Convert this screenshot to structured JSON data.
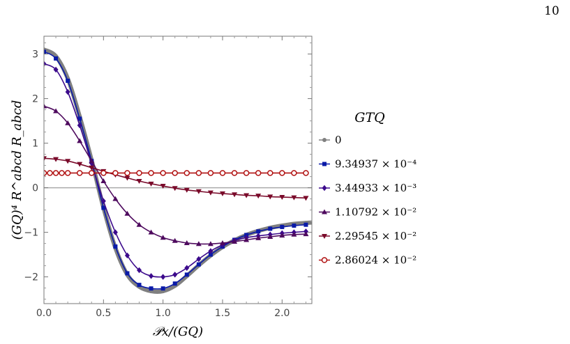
{
  "page_number": "10",
  "chart_data": {
    "type": "line",
    "title": "",
    "xlabel": "𝒫x/(GQ)",
    "ylabel": "(GQ)⁴ R^abcd R_abcd",
    "xlim": [
      0,
      2.25
    ],
    "ylim": [
      -2.6,
      3.4
    ],
    "x_ticks": [
      0.0,
      0.5,
      1.0,
      1.5,
      2.0
    ],
    "x_tick_labels": [
      "0.0",
      "0.5",
      "1.0",
      "1.5",
      "2.0"
    ],
    "y_ticks": [
      -2,
      -1,
      0,
      1,
      2,
      3
    ],
    "y_tick_labels": [
      "−2",
      "−1",
      "0",
      "1",
      "2",
      "3"
    ],
    "grid": false,
    "zero_line": true,
    "legend": {
      "title": "GTQ",
      "position": "right",
      "entries": [
        "0",
        "9.34937 × 10⁻⁴",
        "3.44933 × 10⁻³",
        "1.10792 × 10⁻²",
        "2.29545 × 10⁻²",
        "2.86024 × 10⁻²"
      ]
    },
    "series": [
      {
        "name": "0",
        "color": "#808080",
        "marker": "circle",
        "x": [
          0.0,
          0.1,
          0.2,
          0.3,
          0.4,
          0.5,
          0.6,
          0.7,
          0.8,
          0.9,
          1.0,
          1.1,
          1.2,
          1.3,
          1.4,
          1.5,
          1.6,
          1.7,
          1.8,
          1.9,
          2.0,
          2.1,
          2.2,
          2.25
        ],
        "y": [
          3.1,
          2.95,
          2.45,
          1.6,
          0.62,
          -0.45,
          -1.35,
          -1.95,
          -2.22,
          -2.32,
          -2.32,
          -2.2,
          -1.98,
          -1.74,
          -1.52,
          -1.33,
          -1.18,
          -1.06,
          -0.97,
          -0.9,
          -0.85,
          -0.81,
          -0.79,
          -0.78
        ]
      },
      {
        "name": "9.34937 × 10⁻⁴",
        "color": "#0a1aa8",
        "marker": "square",
        "x": [
          0.0,
          0.1,
          0.2,
          0.3,
          0.4,
          0.5,
          0.6,
          0.7,
          0.8,
          0.9,
          1.0,
          1.1,
          1.2,
          1.3,
          1.4,
          1.5,
          1.6,
          1.7,
          1.8,
          1.9,
          2.0,
          2.1,
          2.2
        ],
        "y": [
          3.05,
          2.9,
          2.4,
          1.55,
          0.6,
          -0.45,
          -1.32,
          -1.92,
          -2.18,
          -2.26,
          -2.26,
          -2.15,
          -1.95,
          -1.72,
          -1.5,
          -1.32,
          -1.17,
          -1.06,
          -0.98,
          -0.92,
          -0.88,
          -0.85,
          -0.83
        ]
      },
      {
        "name": "3.44933 × 10⁻³",
        "color": "#3c0a8c",
        "marker": "diamond",
        "x": [
          0.0,
          0.1,
          0.2,
          0.3,
          0.4,
          0.5,
          0.6,
          0.7,
          0.8,
          0.9,
          1.0,
          1.1,
          1.2,
          1.3,
          1.4,
          1.5,
          1.6,
          1.7,
          1.8,
          1.9,
          2.0,
          2.1,
          2.2
        ],
        "y": [
          2.78,
          2.65,
          2.15,
          1.4,
          0.55,
          -0.3,
          -1.0,
          -1.52,
          -1.85,
          -1.98,
          -2.0,
          -1.95,
          -1.8,
          -1.6,
          -1.42,
          -1.28,
          -1.18,
          -1.12,
          -1.08,
          -1.05,
          -1.02,
          -1.0,
          -0.98
        ]
      },
      {
        "name": "1.10792 × 10⁻²",
        "color": "#4e0a5e",
        "marker": "triangle-up",
        "x": [
          0.0,
          0.1,
          0.2,
          0.3,
          0.4,
          0.5,
          0.6,
          0.7,
          0.8,
          0.9,
          1.0,
          1.1,
          1.2,
          1.3,
          1.4,
          1.5,
          1.6,
          1.7,
          1.8,
          1.9,
          2.0,
          2.1,
          2.2
        ],
        "y": [
          1.83,
          1.72,
          1.45,
          1.05,
          0.6,
          0.15,
          -0.25,
          -0.58,
          -0.83,
          -1.0,
          -1.12,
          -1.19,
          -1.24,
          -1.26,
          -1.26,
          -1.24,
          -1.21,
          -1.17,
          -1.13,
          -1.1,
          -1.07,
          -1.05,
          -1.04
        ]
      },
      {
        "name": "2.29545 × 10⁻²",
        "color": "#7a0a2a",
        "marker": "triangle-down",
        "x": [
          0.0,
          0.1,
          0.2,
          0.3,
          0.4,
          0.5,
          0.6,
          0.7,
          0.8,
          0.9,
          1.0,
          1.1,
          1.2,
          1.3,
          1.4,
          1.5,
          1.6,
          1.7,
          1.8,
          1.9,
          2.0,
          2.1,
          2.2
        ],
        "y": [
          0.66,
          0.64,
          0.6,
          0.53,
          0.45,
          0.37,
          0.29,
          0.22,
          0.15,
          0.09,
          0.04,
          -0.01,
          -0.05,
          -0.08,
          -0.11,
          -0.13,
          -0.15,
          -0.17,
          -0.18,
          -0.2,
          -0.21,
          -0.22,
          -0.23
        ]
      },
      {
        "name": "2.86024 × 10⁻²",
        "color": "#b01010",
        "marker": "open-circle",
        "x": [
          0.0,
          0.05,
          0.1,
          0.15,
          0.2,
          0.3,
          0.4,
          0.5,
          0.6,
          0.7,
          0.8,
          0.9,
          1.0,
          1.1,
          1.2,
          1.3,
          1.4,
          1.5,
          1.6,
          1.7,
          1.8,
          1.9,
          2.0,
          2.1,
          2.2
        ],
        "y": [
          0.33,
          0.33,
          0.33,
          0.33,
          0.33,
          0.33,
          0.33,
          0.33,
          0.33,
          0.33,
          0.33,
          0.33,
          0.33,
          0.33,
          0.33,
          0.33,
          0.33,
          0.33,
          0.33,
          0.33,
          0.33,
          0.33,
          0.33,
          0.33,
          0.33
        ]
      }
    ]
  }
}
